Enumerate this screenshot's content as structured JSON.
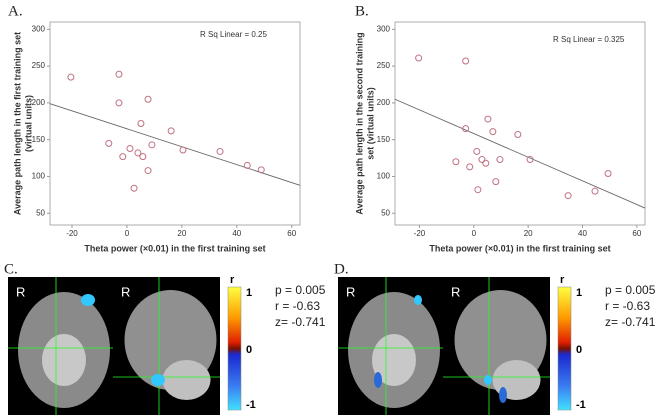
{
  "chart_data": [
    {
      "type": "scatter",
      "panel": "A.",
      "annotation": "R Sq Linear = 0.25",
      "xlabel": "Theta power (×0.01) in the first training set",
      "ylabel": [
        "Average path length in the first training set",
        "(virtual units)"
      ],
      "color": "#c07080",
      "xlim": [
        -28,
        63
      ],
      "ylim": [
        34,
        310
      ],
      "xticks": [
        -20,
        0,
        20,
        40,
        60
      ],
      "yticks": [
        50,
        100,
        150,
        200,
        250,
        300
      ],
      "x": [
        -20.4,
        -2.9,
        -2.9,
        7.7,
        -6.6,
        -1.5,
        1.1,
        4.0,
        5.8,
        5.1,
        9.1,
        7.7,
        2.6,
        16.1,
        20.4,
        33.9,
        43.8,
        48.9
      ],
      "values": [
        235,
        239,
        200,
        205,
        145,
        127,
        138,
        132,
        127,
        172,
        143,
        108,
        84,
        162,
        136,
        134,
        115,
        109
      ],
      "fit_line": {
        "x": [
          -28,
          63
        ],
        "y": [
          199,
          88
        ]
      }
    },
    {
      "type": "scatter",
      "panel": "B.",
      "annotation": "R Sq Linear = 0.325",
      "xlabel": "Theta power (×0.01) in the first training set",
      "ylabel": [
        "Average path length in the second training",
        "set (virtual units)"
      ],
      "color": "#c07080",
      "xlim": [
        -29,
        63
      ],
      "ylim": [
        34,
        310
      ],
      "xticks": [
        -20,
        0,
        20,
        40,
        60
      ],
      "yticks": [
        50,
        100,
        150,
        200,
        250,
        300
      ],
      "x": [
        -20.3,
        -3.0,
        -3.0,
        5.2,
        -6.6,
        -1.5,
        1.1,
        3.0,
        4.4,
        7.0,
        9.6,
        8.1,
        1.5,
        16.2,
        20.7,
        34.7,
        44.6,
        49.4
      ],
      "values": [
        261,
        257,
        165,
        178,
        120,
        113,
        134,
        123,
        118,
        161,
        123,
        93,
        82,
        157,
        123,
        74,
        80,
        104
      ],
      "fit_line": {
        "x": [
          -29,
          63
        ],
        "y": [
          205,
          57
        ]
      }
    }
  ],
  "brain_panels": [
    {
      "label": "C.",
      "orientation_labels": [
        "R",
        "R"
      ],
      "colorbar": {
        "title": "r",
        "labels": [
          "1",
          "0",
          "-1"
        ]
      },
      "stats": [
        "p = 0.005",
        "r = -0.63",
        "z= -0.741"
      ]
    },
    {
      "label": "D.",
      "orientation_labels": [
        "R",
        "R"
      ],
      "colorbar": {
        "title": "r",
        "labels": [
          "1",
          "0",
          "-1"
        ]
      },
      "stats": [
        "p = 0.005",
        "r = -0.63",
        "z= -0.741"
      ]
    }
  ]
}
